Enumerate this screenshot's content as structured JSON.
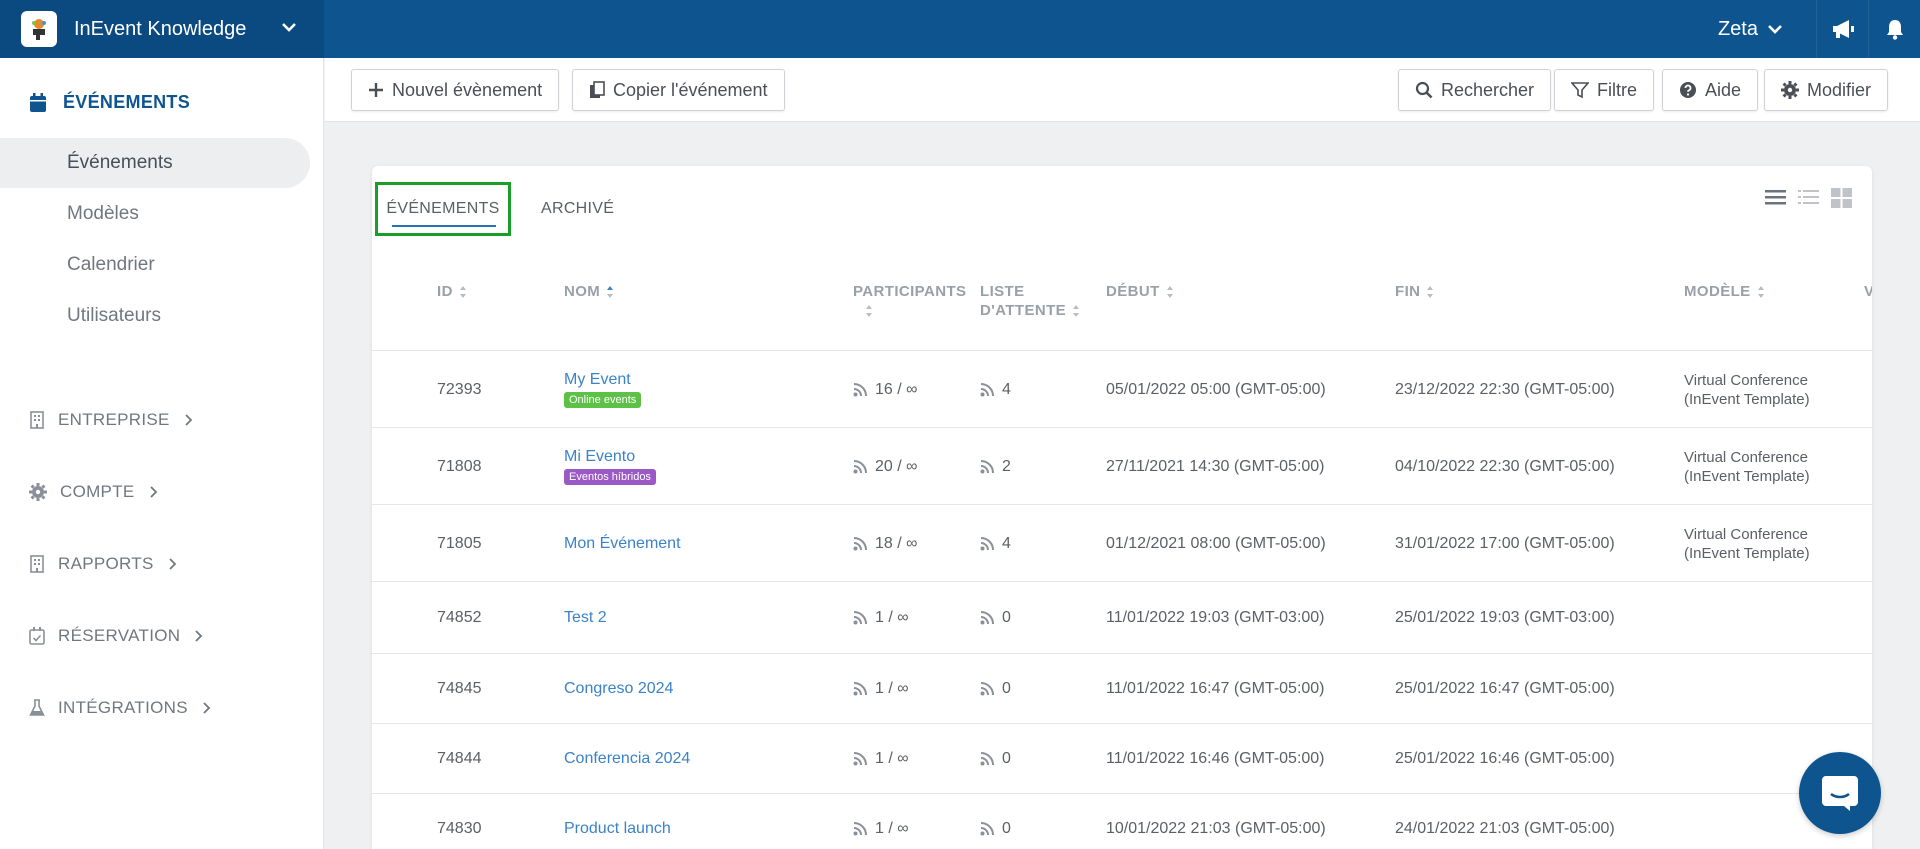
{
  "app": {
    "name": "InEvent Knowledge",
    "user": "Zeta"
  },
  "sidebar": {
    "section": "ÉVÉNEMENTS",
    "items": [
      {
        "label": "Événements",
        "active": true
      },
      {
        "label": "Modèles",
        "active": false
      },
      {
        "label": "Calendrier",
        "active": false
      },
      {
        "label": "Utilisateurs",
        "active": false
      }
    ],
    "groups": [
      {
        "label": "ENTREPRISE",
        "icon": "building-icon"
      },
      {
        "label": "COMPTE",
        "icon": "gear-icon"
      },
      {
        "label": "RAPPORTS",
        "icon": "building-icon"
      },
      {
        "label": "RÉSERVATION",
        "icon": "calendar-check-icon"
      },
      {
        "label": "INTÉGRATIONS",
        "icon": "flask-icon"
      }
    ]
  },
  "toolbar": {
    "new_event": "Nouvel évènement",
    "copy_event": "Copier l'événement",
    "search": "Rechercher",
    "filter": "Filtre",
    "help": "Aide",
    "edit": "Modifier"
  },
  "tabs": {
    "events": "ÉVÉNEMENTS",
    "archive": "ARCHIVÉ"
  },
  "table": {
    "headers": {
      "id": "ID",
      "name": "NOM",
      "participants": "PARTICIPANTS",
      "waitlist_1": "LISTE",
      "waitlist_2": "D'ATTENTE",
      "start": "DÉBUT",
      "end": "FIN",
      "template": "MODÈLE",
      "cut": "V"
    },
    "rows": [
      {
        "id": "72393",
        "name": "My Event",
        "badge": "Online events",
        "badge_color": "#5cc146",
        "participants": "16 / ∞",
        "waitlist": "4",
        "start": "05/01/2022 05:00 (GMT-05:00)",
        "end": "23/12/2022 22:30 (GMT-05:00)",
        "template_1": "Virtual Conference",
        "template_2": "(InEvent Template)"
      },
      {
        "id": "71808",
        "name": "Mi Evento",
        "badge": "Eventos híbridos",
        "badge_color": "#9b59c6",
        "participants": "20 / ∞",
        "waitlist": "2",
        "start": "27/11/2021 14:30 (GMT-05:00)",
        "end": "04/10/2022 22:30 (GMT-05:00)",
        "template_1": "Virtual Conference",
        "template_2": "(InEvent Template)"
      },
      {
        "id": "71805",
        "name": "Mon Événement",
        "badge": "",
        "badge_color": "",
        "participants": "18 / ∞",
        "waitlist": "4",
        "start": "01/12/2021 08:00 (GMT-05:00)",
        "end": "31/01/2022 17:00 (GMT-05:00)",
        "template_1": "Virtual Conference",
        "template_2": "(InEvent Template)"
      },
      {
        "id": "74852",
        "name": "Test 2",
        "badge": "",
        "badge_color": "",
        "participants": "1 / ∞",
        "waitlist": "0",
        "start": "11/01/2022 19:03 (GMT-03:00)",
        "end": "25/01/2022 19:03 (GMT-03:00)",
        "template_1": "",
        "template_2": ""
      },
      {
        "id": "74845",
        "name": "Congreso 2024",
        "badge": "",
        "badge_color": "",
        "participants": "1 / ∞",
        "waitlist": "0",
        "start": "11/01/2022 16:47 (GMT-05:00)",
        "end": "25/01/2022 16:47 (GMT-05:00)",
        "template_1": "",
        "template_2": ""
      },
      {
        "id": "74844",
        "name": "Conferencia 2024",
        "badge": "",
        "badge_color": "",
        "participants": "1 / ∞",
        "waitlist": "0",
        "start": "11/01/2022 16:46 (GMT-05:00)",
        "end": "25/01/2022 16:46 (GMT-05:00)",
        "template_1": "",
        "template_2": ""
      },
      {
        "id": "74830",
        "name": "Product launch",
        "badge": "",
        "badge_color": "",
        "participants": "1 / ∞",
        "waitlist": "0",
        "start": "10/01/2022 21:03 (GMT-05:00)",
        "end": "24/01/2022 21:03 (GMT-05:00)",
        "template_1": "",
        "template_2": ""
      }
    ]
  },
  "colors": {
    "topbar": "#0e5590",
    "accent": "#0e5590",
    "link": "#3b82c8",
    "highlight": "#1a9e2a"
  }
}
